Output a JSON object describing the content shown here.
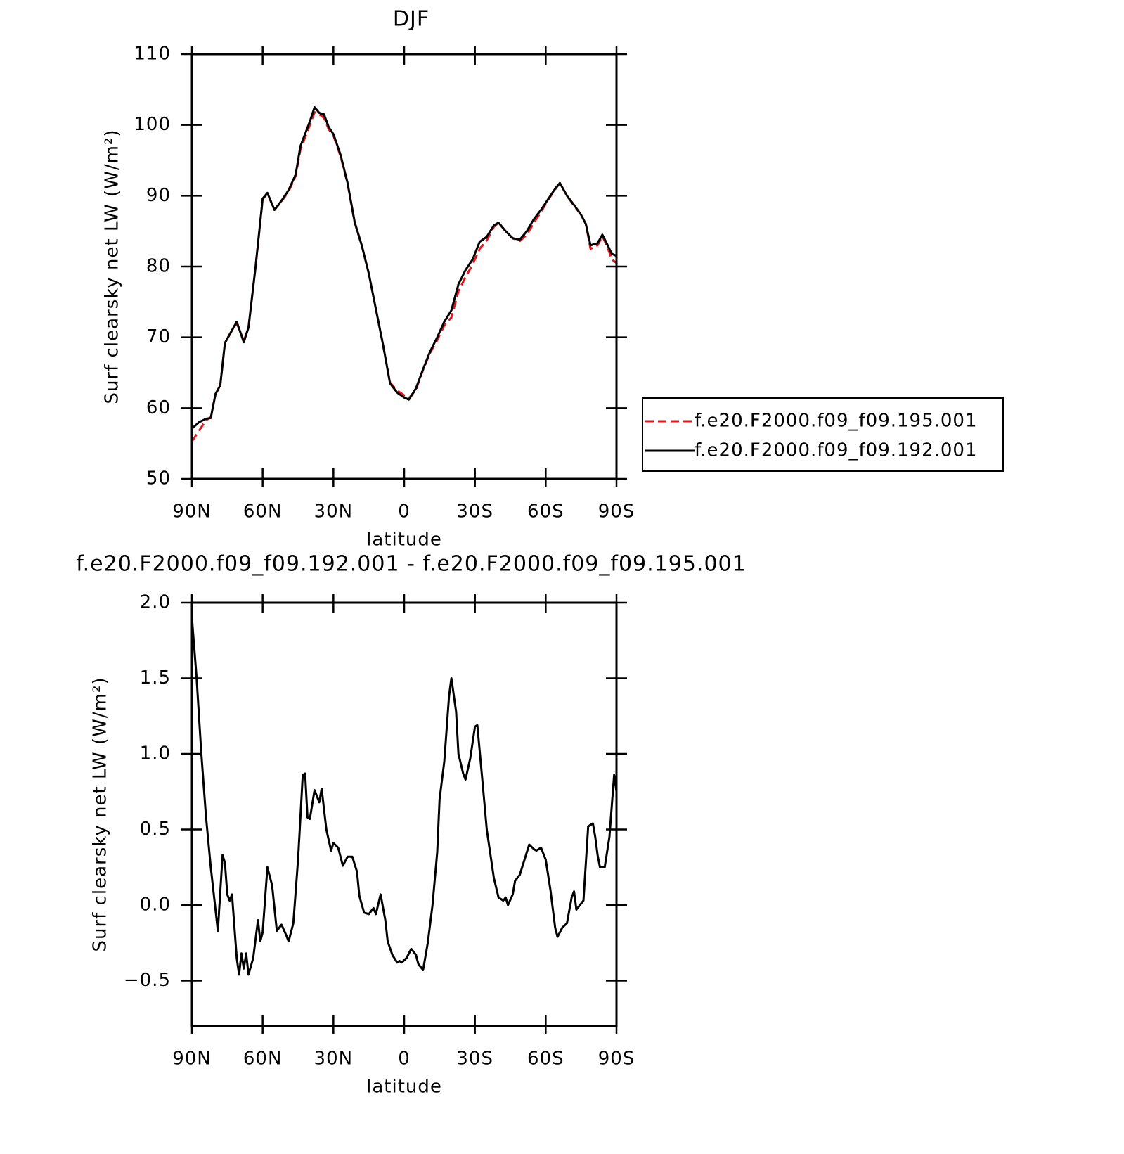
{
  "chart_data": [
    {
      "type": "line",
      "title": "DJF",
      "xlabel": "latitude",
      "ylabel": "Surf clearsky net LW (W/m²)",
      "xlim": [
        90,
        -90
      ],
      "xticks": [
        {
          "value": 90,
          "label": "90N"
        },
        {
          "value": 60,
          "label": "60N"
        },
        {
          "value": 30,
          "label": "30N"
        },
        0,
        {
          "value": -30,
          "label": "30S"
        },
        {
          "value": -60,
          "label": "60S"
        },
        {
          "value": -90,
          "label": "90S"
        }
      ],
      "ylim": [
        50,
        110
      ],
      "yticks": [
        50,
        60,
        70,
        80,
        90,
        100,
        110
      ],
      "legend": "right",
      "x": [
        90,
        87,
        84,
        82,
        80,
        78,
        76,
        73,
        71,
        68,
        66,
        63,
        60,
        58,
        55,
        52,
        49,
        46,
        44,
        40,
        38,
        36,
        34,
        32,
        30,
        27,
        24,
        21,
        18,
        15,
        12,
        9,
        6,
        3,
        0,
        -2,
        -5,
        -8,
        -11,
        -14,
        -17,
        -20,
        -23,
        -26,
        -29,
        -32,
        -35,
        -38,
        -40,
        -43,
        -46,
        -49,
        -52,
        -55,
        -58,
        -61,
        -64,
        -66,
        -69,
        -72,
        -75,
        -77,
        -79,
        -82,
        -84,
        -86,
        -88,
        -90
      ],
      "series": [
        {
          "name": "f.e20.F2000.f09_f09.195.001",
          "color": "#e8141a",
          "linestyle": "dashed",
          "values": [
            55.3,
            56.8,
            58.3,
            58.7,
            62,
            63.1,
            69.2,
            71,
            72,
            69.5,
            71.4,
            80,
            89.5,
            90.3,
            88,
            89.2,
            90.6,
            92.8,
            96.5,
            100,
            101.8,
            101.5,
            101,
            99.4,
            98.5,
            95.6,
            91.7,
            86.2,
            83,
            79,
            74,
            69,
            63.6,
            62.5,
            61.8,
            61.4,
            62.6,
            65.4,
            67.8,
            69.6,
            71.7,
            72.8,
            76.5,
            78.5,
            80.3,
            82.5,
            83.7,
            85.6,
            86.2,
            85,
            84,
            83.6,
            84.5,
            86.2,
            87.7,
            89.4,
            90.9,
            91.8,
            90,
            88.6,
            87.3,
            86,
            82.5,
            83,
            84.3,
            82.9,
            81,
            80.5
          ]
        },
        {
          "name": "f.e20.F2000.f09_f09.192.001",
          "color": "#000000",
          "linestyle": "solid",
          "values": [
            57.1,
            58.0,
            58.5,
            58.6,
            62,
            63.2,
            69.2,
            71,
            72.2,
            69.3,
            71.4,
            80,
            89.6,
            90.4,
            88,
            89.3,
            90.8,
            93,
            97,
            100.5,
            102.5,
            101.7,
            101.5,
            99.7,
            98.7,
            95.8,
            91.8,
            86.3,
            83,
            79,
            74,
            69,
            63.5,
            62.2,
            61.5,
            61.2,
            62.8,
            65.5,
            68,
            70,
            72.2,
            73.8,
            77.5,
            79.5,
            81,
            83.5,
            84.2,
            85.8,
            86.2,
            85,
            84,
            83.8,
            85,
            86.7,
            88,
            89.5,
            91,
            91.8,
            90,
            88.7,
            87.3,
            86,
            83,
            83.3,
            84.5,
            83.2,
            81.8,
            81.5
          ]
        }
      ]
    },
    {
      "type": "line",
      "title": "f.e20.F2000.f09_f09.192.001 - f.e20.F2000.f09_f09.195.001",
      "xlabel": "latitude",
      "ylabel": "Surf clearsky net LW (W/m²)",
      "xlim": [
        90,
        -90
      ],
      "xticks": [
        {
          "value": 90,
          "label": "90N"
        },
        {
          "value": 60,
          "label": "60N"
        },
        {
          "value": 30,
          "label": "30N"
        },
        0,
        {
          "value": -30,
          "label": "30S"
        },
        {
          "value": -60,
          "label": "60S"
        },
        {
          "value": -90,
          "label": "90S"
        }
      ],
      "ylim": [
        -0.8,
        2.0
      ],
      "yticks": [
        {
          "value": -0.5,
          "label": "−0.5"
        },
        {
          "value": 0,
          "label": "0.0"
        },
        0.5,
        {
          "value": 1,
          "label": "1.0"
        },
        1.5,
        {
          "value": 2,
          "label": "2.0"
        }
      ],
      "x": [
        90,
        88,
        86,
        84,
        82,
        79,
        77,
        76,
        75,
        74,
        73,
        71,
        70,
        69,
        68,
        67,
        66,
        64,
        62,
        61,
        60,
        58,
        56,
        54,
        52,
        50,
        49,
        47,
        45,
        43,
        42,
        41,
        40,
        38,
        36,
        35,
        33,
        31,
        30,
        28,
        26,
        24,
        22,
        20,
        19,
        17,
        15,
        13,
        12,
        10,
        8,
        7,
        5,
        3,
        2,
        1,
        -1,
        -3,
        -5,
        -6,
        -8,
        -10,
        -12,
        -14,
        -15,
        -17,
        -19,
        -20,
        -22,
        -23,
        -25,
        -26,
        -28,
        -30,
        -31,
        -33,
        -35,
        -38,
        -40,
        -42,
        -43,
        -44,
        -46,
        -47,
        -49,
        -51,
        -53,
        -55,
        -56,
        -58,
        -60,
        -62,
        -64,
        -65,
        -67,
        -69,
        -71,
        -72,
        -73,
        -76,
        -78,
        -80,
        -81,
        -82,
        -83,
        -85,
        -87,
        -89,
        -90
      ],
      "series": [
        {
          "color": "#000000",
          "linestyle": "solid",
          "values": [
            1.9,
            1.5,
            1.0,
            0.58,
            0.25,
            -0.17,
            0.33,
            0.28,
            0.07,
            0.03,
            0.07,
            -0.35,
            -0.46,
            -0.32,
            -0.42,
            -0.32,
            -0.46,
            -0.35,
            -0.1,
            -0.24,
            -0.18,
            0.25,
            0.13,
            -0.17,
            -0.13,
            -0.2,
            -0.24,
            -0.12,
            0.3,
            0.86,
            0.87,
            0.58,
            0.57,
            0.76,
            0.68,
            0.77,
            0.5,
            0.36,
            0.41,
            0.38,
            0.26,
            0.32,
            0.32,
            0.22,
            0.06,
            -0.05,
            -0.06,
            -0.02,
            -0.06,
            0.07,
            -0.1,
            -0.24,
            -0.33,
            -0.38,
            -0.37,
            -0.38,
            -0.35,
            -0.29,
            -0.33,
            -0.39,
            -0.43,
            -0.25,
            0.0,
            0.35,
            0.7,
            0.95,
            1.38,
            1.5,
            1.28,
            1.0,
            0.87,
            0.83,
            0.97,
            1.18,
            1.19,
            0.85,
            0.5,
            0.18,
            0.05,
            0.03,
            0.05,
            0.0,
            0.07,
            0.16,
            0.2,
            0.3,
            0.4,
            0.37,
            0.36,
            0.38,
            0.3,
            0.1,
            -0.15,
            -0.21,
            -0.15,
            -0.12,
            0.05,
            0.09,
            -0.03,
            0.03,
            0.52,
            0.54,
            0.45,
            0.33,
            0.25,
            0.25,
            0.45,
            0.86,
            0.75
          ]
        }
      ]
    }
  ]
}
